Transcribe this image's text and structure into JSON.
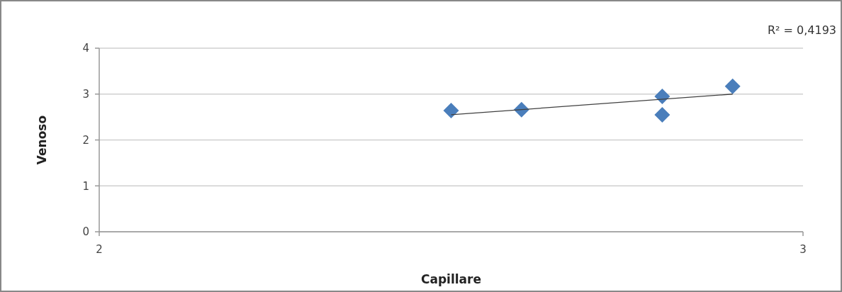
{
  "chart_data": {
    "type": "scatter",
    "xlabel": "Capillare",
    "ylabel": "Venoso",
    "xlim": [
      2,
      3
    ],
    "xticks": [
      2,
      3
    ],
    "ylim": [
      0,
      4
    ],
    "yticks": [
      0,
      1,
      2,
      3,
      4
    ],
    "grid": "y",
    "annotations": [
      "R² = 0,4193"
    ],
    "series": [
      {
        "color": "#4a7ebb",
        "marker": "diamond",
        "x": [
          2.5,
          2.6,
          2.8,
          2.8,
          2.9
        ],
        "values": [
          2.64,
          2.66,
          2.95,
          2.55,
          3.17
        ]
      },
      {
        "type": "line",
        "color": "#404040",
        "marker": "none",
        "line_style": "solid",
        "x": [
          2.5,
          2.9
        ],
        "values": [
          2.55,
          3.0
        ]
      }
    ]
  }
}
